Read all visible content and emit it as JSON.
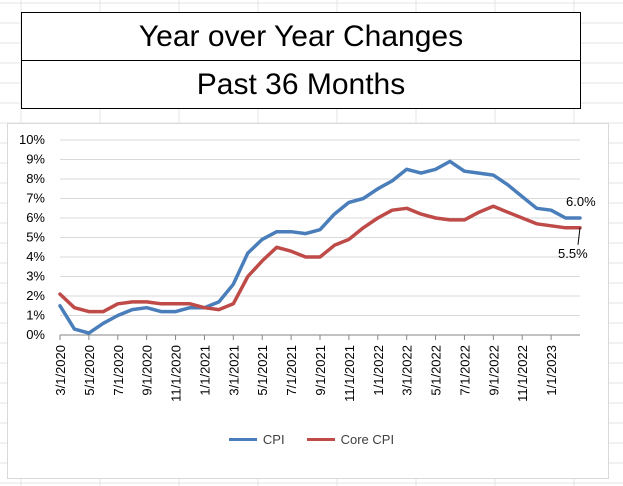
{
  "header": {
    "title": "Year over Year Changes",
    "subtitle": "Past 36 Months"
  },
  "colors": {
    "cpi": "#4a7ebb",
    "core_cpi": "#be4b48",
    "gridline": "#d9d9d9",
    "sheet_grid": "#e4e4e4",
    "axis_text": "#000000"
  },
  "chart_data": {
    "type": "line",
    "title": "",
    "xlabel": "",
    "ylabel": "",
    "ylim": [
      0,
      10
    ],
    "y_ticks": [
      "0%",
      "1%",
      "2%",
      "3%",
      "4%",
      "5%",
      "6%",
      "7%",
      "8%",
      "9%",
      "10%"
    ],
    "x_tick_labels": [
      "3/1/2020",
      "5/1/2020",
      "7/1/2020",
      "9/1/2020",
      "11/1/2020",
      "1/1/2021",
      "3/1/2021",
      "5/1/2021",
      "7/1/2021",
      "9/1/2021",
      "11/1/2021",
      "1/1/2022",
      "3/1/2022",
      "5/1/2022",
      "7/1/2022",
      "9/1/2022",
      "11/1/2022",
      "1/1/2023"
    ],
    "x": [
      "3/1/2020",
      "4/1/2020",
      "5/1/2020",
      "6/1/2020",
      "7/1/2020",
      "8/1/2020",
      "9/1/2020",
      "10/1/2020",
      "11/1/2020",
      "12/1/2020",
      "1/1/2021",
      "2/1/2021",
      "3/1/2021",
      "4/1/2021",
      "5/1/2021",
      "6/1/2021",
      "7/1/2021",
      "8/1/2021",
      "9/1/2021",
      "10/1/2021",
      "11/1/2021",
      "12/1/2021",
      "1/1/2022",
      "2/1/2022",
      "3/1/2022",
      "4/1/2022",
      "5/1/2022",
      "6/1/2022",
      "7/1/2022",
      "8/1/2022",
      "9/1/2022",
      "10/1/2022",
      "11/1/2022",
      "12/1/2022",
      "1/1/2023",
      "2/1/2023",
      "3/1/2023"
    ],
    "series": [
      {
        "name": "CPI",
        "values": [
          1.5,
          0.3,
          0.1,
          0.6,
          1.0,
          1.3,
          1.4,
          1.2,
          1.2,
          1.4,
          1.4,
          1.7,
          2.6,
          4.2,
          4.9,
          5.3,
          5.3,
          5.2,
          5.4,
          6.2,
          6.8,
          7.0,
          7.5,
          7.9,
          8.5,
          8.3,
          8.5,
          8.9,
          8.4,
          8.3,
          8.2,
          7.7,
          7.1,
          6.5,
          6.4,
          6.0,
          6.0
        ],
        "end_label": "6.0%"
      },
      {
        "name": "Core CPI",
        "values": [
          2.1,
          1.4,
          1.2,
          1.2,
          1.6,
          1.7,
          1.7,
          1.6,
          1.6,
          1.6,
          1.4,
          1.3,
          1.6,
          3.0,
          3.8,
          4.5,
          4.3,
          4.0,
          4.0,
          4.6,
          4.9,
          5.5,
          6.0,
          6.4,
          6.5,
          6.2,
          6.0,
          5.9,
          5.9,
          6.3,
          6.6,
          6.3,
          6.0,
          5.7,
          5.6,
          5.5,
          5.5
        ],
        "end_label": "5.5%"
      }
    ],
    "legend_position": "bottom",
    "grid": true
  }
}
